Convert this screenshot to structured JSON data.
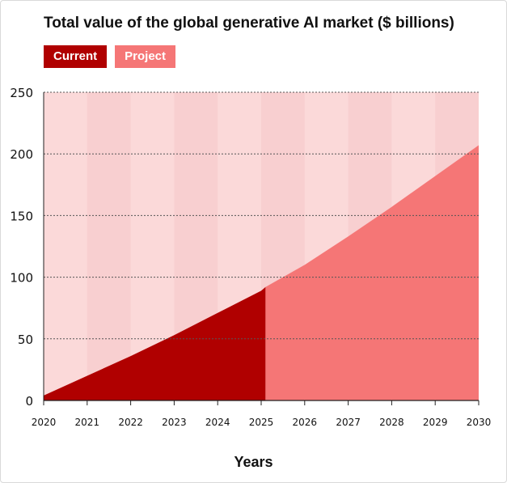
{
  "chart_data": {
    "type": "area",
    "title": "Total value of the global generative AI market ($ billions)",
    "xlabel": "Years",
    "ylabel": "",
    "categories": [
      "2020",
      "2021",
      "2022",
      "2023",
      "2024",
      "2025",
      "2026",
      "2027",
      "2028",
      "2029",
      "2030"
    ],
    "x": [
      2020,
      2021,
      2022,
      2023,
      2024,
      2025,
      2026,
      2027,
      2028,
      2029,
      2030
    ],
    "ylim": [
      0,
      250
    ],
    "yticks": [
      0,
      50,
      100,
      150,
      200,
      250
    ],
    "grid": true,
    "legend_position": "top-left",
    "series": [
      {
        "name": "Current",
        "color": "#b00000",
        "x": [
          2020,
          2021,
          2022,
          2023,
          2024,
          2025,
          2025.1
        ],
        "values": [
          4,
          20,
          36,
          53,
          71,
          89,
          92
        ]
      },
      {
        "name": "Project",
        "color": "#f57676",
        "x": [
          2025.1,
          2026,
          2027,
          2028,
          2029,
          2030
        ],
        "values": [
          92,
          110,
          133,
          157,
          182,
          207
        ]
      }
    ],
    "background_color": "#fbd9d9",
    "stripe_color": "#f8cfd0"
  }
}
